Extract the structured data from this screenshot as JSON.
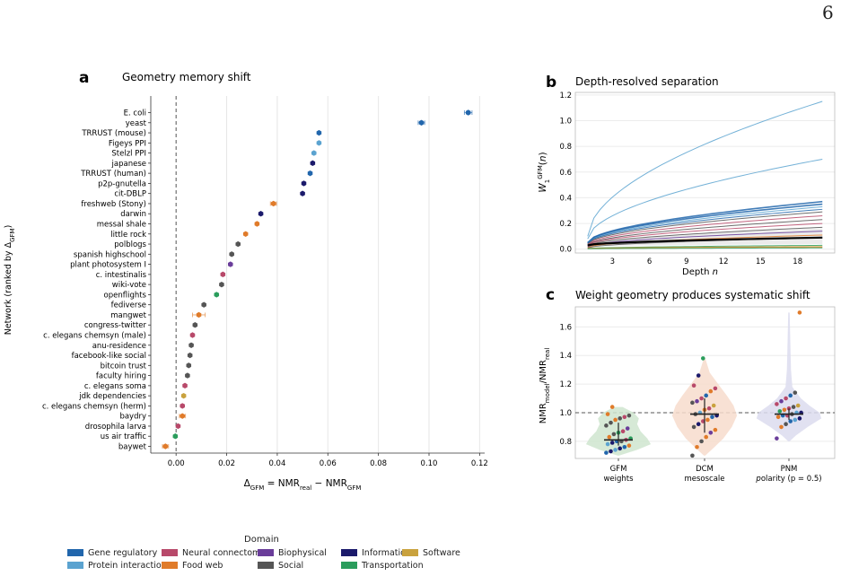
{
  "page_number": "6",
  "domain_colors": {
    "Gene regulatory": "#2166ac",
    "Protein interaction": "#5ba3d0",
    "Neural connectome": "#b8496a",
    "Food web": "#e07b2a",
    "Biophysical": "#6a3d9a",
    "Social": "#555555",
    "Information": "#1b1a6b",
    "Transportation": "#2a9d5c",
    "Software": "#c9a23e"
  },
  "legend": {
    "title": "Domain",
    "items": [
      "Gene regulatory",
      "Protein interaction",
      "Neural connectome",
      "Food web",
      "Biophysical",
      "Social",
      "Information",
      "Transportation",
      "Software"
    ]
  },
  "chart_data": [
    {
      "panel": "a",
      "type": "scatter",
      "title": "Geometry memory shift",
      "xlabel": "Δ_GFM = NMR_real − NMR_GFM",
      "ylabel": "Network (ranked by Δ_GFM)",
      "xlim": [
        -0.01,
        0.122
      ],
      "xticks": [
        "0.00",
        "0.02",
        "0.04",
        "0.06",
        "0.08",
        "0.10",
        "0.12"
      ],
      "xtick_values": [
        0,
        0.02,
        0.04,
        0.06,
        0.08,
        0.1,
        0.12
      ],
      "reference_line": 0,
      "grid": "vertical",
      "points": [
        {
          "name": "E. coli",
          "value": 0.1155,
          "err": 0.0015,
          "domain": "Gene regulatory"
        },
        {
          "name": "yeast",
          "value": 0.097,
          "err": 0.0013,
          "domain": "Gene regulatory"
        },
        {
          "name": "TRRUST (mouse)",
          "value": 0.0565,
          "err": 0,
          "domain": "Gene regulatory"
        },
        {
          "name": "Figeys PPI",
          "value": 0.0565,
          "err": 0,
          "domain": "Protein interaction"
        },
        {
          "name": "Stelzl PPI",
          "value": 0.0545,
          "err": 0,
          "domain": "Protein interaction"
        },
        {
          "name": "japanese",
          "value": 0.054,
          "err": 0,
          "domain": "Information"
        },
        {
          "name": "TRRUST (human)",
          "value": 0.053,
          "err": 0,
          "domain": "Gene regulatory"
        },
        {
          "name": "p2p-gnutella",
          "value": 0.0505,
          "err": 0,
          "domain": "Information"
        },
        {
          "name": "cit-DBLP",
          "value": 0.05,
          "err": 0,
          "domain": "Information"
        },
        {
          "name": "freshweb (Stony)",
          "value": 0.0385,
          "err": 0.0012,
          "domain": "Food web"
        },
        {
          "name": "darwin",
          "value": 0.0335,
          "err": 0,
          "domain": "Information"
        },
        {
          "name": "messal shale",
          "value": 0.032,
          "err": 0,
          "domain": "Food web"
        },
        {
          "name": "little rock",
          "value": 0.0275,
          "err": 0,
          "domain": "Food web"
        },
        {
          "name": "polblogs",
          "value": 0.0245,
          "err": 0,
          "domain": "Social"
        },
        {
          "name": "spanish highschool",
          "value": 0.022,
          "err": 0,
          "domain": "Social"
        },
        {
          "name": "plant photosystem I",
          "value": 0.0215,
          "err": 0,
          "domain": "Biophysical"
        },
        {
          "name": "c. intestinalis",
          "value": 0.0185,
          "err": 0,
          "domain": "Neural connectome"
        },
        {
          "name": "wiki-vote",
          "value": 0.018,
          "err": 0,
          "domain": "Social"
        },
        {
          "name": "openflights",
          "value": 0.016,
          "err": 0,
          "domain": "Transportation"
        },
        {
          "name": "fediverse",
          "value": 0.011,
          "err": 0,
          "domain": "Social"
        },
        {
          "name": "mangwet",
          "value": 0.009,
          "err": 0.0025,
          "domain": "Food web"
        },
        {
          "name": "congress-twitter",
          "value": 0.0075,
          "err": 0,
          "domain": "Social"
        },
        {
          "name": "c. elegans chemsyn (male)",
          "value": 0.0065,
          "err": 0,
          "domain": "Neural connectome"
        },
        {
          "name": "anu-residence",
          "value": 0.006,
          "err": 0,
          "domain": "Social"
        },
        {
          "name": "facebook-like social",
          "value": 0.0055,
          "err": 0,
          "domain": "Social"
        },
        {
          "name": "bitcoin trust",
          "value": 0.005,
          "err": 0,
          "domain": "Social"
        },
        {
          "name": "faculty hiring",
          "value": 0.0045,
          "err": 0,
          "domain": "Social"
        },
        {
          "name": "c. elegans soma",
          "value": 0.0035,
          "err": 0,
          "domain": "Neural connectome"
        },
        {
          "name": "jdk dependencies",
          "value": 0.003,
          "err": 0,
          "domain": "Software"
        },
        {
          "name": "c. elegans chemsyn (herm)",
          "value": 0.0025,
          "err": 0,
          "domain": "Neural connectome"
        },
        {
          "name": "baydry",
          "value": 0.0025,
          "err": 0.0012,
          "domain": "Food web"
        },
        {
          "name": "drosophila larva",
          "value": 0.0008,
          "err": 0,
          "domain": "Neural connectome"
        },
        {
          "name": "us air traffic",
          "value": -0.0003,
          "err": 0,
          "domain": "Transportation"
        },
        {
          "name": "baywet",
          "value": -0.0042,
          "err": 0.0012,
          "domain": "Food web"
        }
      ]
    },
    {
      "panel": "b",
      "type": "line",
      "title": "Depth-resolved separation",
      "xlabel": "Depth n",
      "ylabel": "W_1^GFM(n)",
      "xlim": [
        0,
        21
      ],
      "ylim": [
        -0.03,
        1.22
      ],
      "xticks": [
        "3",
        "6",
        "9",
        "12",
        "15",
        "18"
      ],
      "xtick_values": [
        3,
        6,
        9,
        12,
        15,
        18
      ],
      "yticks": [
        "0.0",
        "0.2",
        "0.4",
        "0.6",
        "0.8",
        "1.0",
        "1.2"
      ],
      "ytick_values": [
        0,
        0.2,
        0.4,
        0.6,
        0.8,
        1.0,
        1.2
      ],
      "x_range": [
        1,
        20
      ],
      "series_endpoints": [
        {
          "domain": "Protein interaction",
          "start": 0.1,
          "end": 1.15,
          "weight": "thin"
        },
        {
          "domain": "Protein interaction",
          "start": 0.08,
          "end": 0.7,
          "weight": "thin"
        },
        {
          "domain": "Gene regulatory",
          "start": 0.05,
          "end": 0.37,
          "weight": "medium"
        },
        {
          "domain": "Gene regulatory",
          "start": 0.05,
          "end": 0.35,
          "weight": "medium"
        },
        {
          "domain": "Protein interaction",
          "start": 0.045,
          "end": 0.33,
          "weight": "thin"
        },
        {
          "domain": "Gene regulatory",
          "start": 0.045,
          "end": 0.31,
          "weight": "thin"
        },
        {
          "domain": "Social",
          "start": 0.04,
          "end": 0.29,
          "weight": "thin"
        },
        {
          "domain": "Neural connectome",
          "start": 0.035,
          "end": 0.26,
          "weight": "thin"
        },
        {
          "domain": "Social",
          "start": 0.03,
          "end": 0.23,
          "weight": "thin"
        },
        {
          "domain": "Neural connectome",
          "start": 0.03,
          "end": 0.2,
          "weight": "thin"
        },
        {
          "domain": "Social",
          "start": 0.025,
          "end": 0.17,
          "weight": "thin"
        },
        {
          "domain": "Biophysical",
          "start": 0.02,
          "end": 0.14,
          "weight": "thin"
        },
        {
          "domain": "Food web",
          "start": 0.015,
          "end": 0.11,
          "weight": "thin"
        },
        {
          "domain": "Social",
          "start": 0.01,
          "end": 0.09,
          "weight": "thin"
        },
        {
          "domain": "Transportation",
          "start": 0.005,
          "end": 0.03,
          "weight": "thin"
        },
        {
          "domain": "Software",
          "start": 0.005,
          "end": 0.02,
          "weight": "thin"
        },
        {
          "domain": "Food web",
          "start": 0.005,
          "end": 0.015,
          "weight": "thin"
        },
        {
          "domain": "Transportation",
          "start": 0.003,
          "end": 0.01,
          "weight": "thin"
        }
      ],
      "mean_series": {
        "start": 0.03,
        "end": 0.09,
        "color": "#000000"
      },
      "band": {
        "lower_end": 0.04,
        "upper_end": 0.16
      }
    },
    {
      "panel": "c",
      "type": "violin",
      "title": "Weight geometry produces systematic shift",
      "ylabel": "NMR_model/NMR_real",
      "ylim": [
        0.68,
        1.74
      ],
      "yticks": [
        "0.8",
        "1.0",
        "1.2",
        "1.4",
        "1.6"
      ],
      "ytick_values": [
        0.8,
        1.0,
        1.2,
        1.4,
        1.6
      ],
      "reference_line": 1.0,
      "groups": [
        {
          "label": "GFM",
          "sublabel": "weights",
          "median": 0.81,
          "q1": 0.77,
          "q3": 0.93,
          "fill": "#cfe5cf",
          "density": [
            [
              0.7,
              0.02
            ],
            [
              0.74,
              0.55
            ],
            [
              0.78,
              0.95
            ],
            [
              0.82,
              0.85
            ],
            [
              0.87,
              0.65
            ],
            [
              0.92,
              0.55
            ],
            [
              0.96,
              0.6
            ],
            [
              1.0,
              0.45
            ],
            [
              1.04,
              0.12
            ]
          ],
          "points": [
            [
              0.72,
              "Gene regulatory"
            ],
            [
              0.73,
              "Information"
            ],
            [
              0.74,
              "Protein interaction"
            ],
            [
              0.75,
              "Information"
            ],
            [
              0.76,
              "Gene regulatory"
            ],
            [
              0.77,
              "Food web"
            ],
            [
              0.78,
              "Protein interaction"
            ],
            [
              0.79,
              "Information"
            ],
            [
              0.8,
              "Gene regulatory"
            ],
            [
              0.8,
              "Social"
            ],
            [
              0.81,
              "Neural connectome"
            ],
            [
              0.82,
              "Transportation"
            ],
            [
              0.83,
              "Food web"
            ],
            [
              0.85,
              "Social"
            ],
            [
              0.86,
              "Transportation"
            ],
            [
              0.87,
              "Neural connectome"
            ],
            [
              0.89,
              "Biophysical"
            ],
            [
              0.91,
              "Social"
            ],
            [
              0.93,
              "Social"
            ],
            [
              0.95,
              "Food web"
            ],
            [
              0.96,
              "Social"
            ],
            [
              0.97,
              "Neural connectome"
            ],
            [
              0.98,
              "Social"
            ],
            [
              0.99,
              "Food web"
            ],
            [
              1.04,
              "Food web"
            ]
          ]
        },
        {
          "label": "DCM",
          "sublabel": "mesoscale",
          "median": 0.99,
          "q1": 0.86,
          "q3": 1.1,
          "fill": "#f7dccd",
          "density": [
            [
              0.7,
              0.02
            ],
            [
              0.75,
              0.25
            ],
            [
              0.82,
              0.55
            ],
            [
              0.9,
              0.8
            ],
            [
              0.98,
              0.95
            ],
            [
              1.05,
              0.85
            ],
            [
              1.12,
              0.65
            ],
            [
              1.2,
              0.4
            ],
            [
              1.28,
              0.15
            ],
            [
              1.38,
              0.02
            ]
          ],
          "points": [
            [
              0.7,
              "Social"
            ],
            [
              0.76,
              "Food web"
            ],
            [
              0.8,
              "Social"
            ],
            [
              0.83,
              "Food web"
            ],
            [
              0.86,
              "Biophysical"
            ],
            [
              0.88,
              "Food web"
            ],
            [
              0.9,
              "Social"
            ],
            [
              0.92,
              "Information"
            ],
            [
              0.94,
              "Neural connectome"
            ],
            [
              0.95,
              "Food web"
            ],
            [
              0.97,
              "Gene regulatory"
            ],
            [
              0.98,
              "Information"
            ],
            [
              0.99,
              "Social"
            ],
            [
              1.0,
              "Protein interaction"
            ],
            [
              1.02,
              "Food web"
            ],
            [
              1.03,
              "Neural connectome"
            ],
            [
              1.05,
              "Software"
            ],
            [
              1.07,
              "Social"
            ],
            [
              1.08,
              "Biophysical"
            ],
            [
              1.1,
              "Neural connectome"
            ],
            [
              1.12,
              "Gene regulatory"
            ],
            [
              1.15,
              "Food web"
            ],
            [
              1.17,
              "Neural connectome"
            ],
            [
              1.19,
              "Neural connectome"
            ],
            [
              1.26,
              "Information"
            ],
            [
              1.38,
              "Transportation"
            ]
          ]
        },
        {
          "label": "PNM",
          "sublabel": "polarity (p = 0.5)",
          "median": 0.99,
          "q1": 0.95,
          "q3": 1.03,
          "fill": "#dcdcef",
          "density": [
            [
              0.8,
              0.02
            ],
            [
              0.84,
              0.2
            ],
            [
              0.9,
              0.55
            ],
            [
              0.96,
              0.95
            ],
            [
              1.0,
              0.9
            ],
            [
              1.05,
              0.6
            ],
            [
              1.1,
              0.35
            ],
            [
              1.18,
              0.1
            ],
            [
              1.3,
              0.06
            ],
            [
              1.5,
              0.04
            ],
            [
              1.7,
              0.02
            ]
          ],
          "points": [
            [
              0.82,
              "Biophysical"
            ],
            [
              0.9,
              "Food web"
            ],
            [
              0.92,
              "Social"
            ],
            [
              0.94,
              "Gene regulatory"
            ],
            [
              0.95,
              "Protein interaction"
            ],
            [
              0.96,
              "Information"
            ],
            [
              0.97,
              "Food web"
            ],
            [
              0.98,
              "Gene regulatory"
            ],
            [
              0.98,
              "Neural connectome"
            ],
            [
              0.99,
              "Social"
            ],
            [
              1.0,
              "Protein interaction"
            ],
            [
              1.0,
              "Information"
            ],
            [
              1.01,
              "Transportation"
            ],
            [
              1.02,
              "Food web"
            ],
            [
              1.03,
              "Neural connectome"
            ],
            [
              1.04,
              "Social"
            ],
            [
              1.05,
              "Software"
            ],
            [
              1.06,
              "Neural connectome"
            ],
            [
              1.08,
              "Biophysical"
            ],
            [
              1.1,
              "Neural connectome"
            ],
            [
              1.12,
              "Gene regulatory"
            ],
            [
              1.14,
              "Social"
            ],
            [
              1.7,
              "Food web"
            ]
          ]
        }
      ]
    }
  ]
}
